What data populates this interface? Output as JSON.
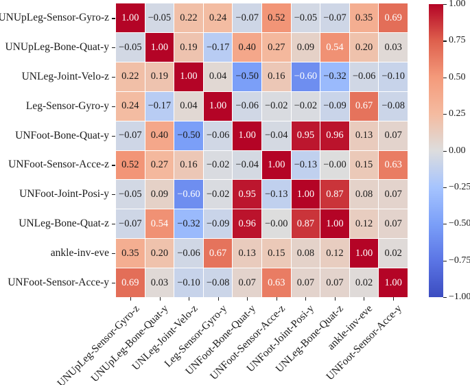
{
  "chart_data": {
    "type": "heatmap",
    "title": "",
    "xlabel": "",
    "ylabel": "",
    "legend_position": "colorbar-right",
    "grid": false,
    "categories": [
      "UNUpLeg-Sensor-Gyro-z",
      "UNUpLeg-Bone-Quat-y",
      "UNLeg-Joint-Velo-z",
      "Leg-Sensor-Gyro-y",
      "UNFoot-Bone-Quat-y",
      "UNFoot-Sensor-Acce-z",
      "UNFoot-Joint-Posi-y",
      "UNLeg-Bone-Quat-z",
      "ankle-inv-eve",
      "UNFoot-Sensor-Acce-y"
    ],
    "values": [
      [
        1.0,
        -0.05,
        0.22,
        0.24,
        -0.07,
        0.52,
        -0.05,
        -0.07,
        0.35,
        0.69
      ],
      [
        -0.05,
        1.0,
        0.19,
        -0.17,
        0.4,
        0.27,
        0.09,
        0.54,
        0.2,
        0.03
      ],
      [
        0.22,
        0.19,
        1.0,
        0.04,
        -0.5,
        0.16,
        -0.6,
        -0.32,
        -0.06,
        -0.1
      ],
      [
        0.24,
        -0.17,
        0.04,
        1.0,
        -0.06,
        -0.02,
        -0.02,
        -0.09,
        0.67,
        -0.08
      ],
      [
        -0.07,
        0.4,
        -0.5,
        -0.06,
        1.0,
        -0.04,
        0.95,
        0.96,
        0.13,
        0.07
      ],
      [
        0.52,
        0.27,
        0.16,
        -0.02,
        -0.04,
        1.0,
        -0.13,
        -0.0,
        0.15,
        0.63
      ],
      [
        -0.05,
        0.09,
        -0.6,
        -0.02,
        0.95,
        -0.13,
        1.0,
        0.87,
        0.08,
        0.07
      ],
      [
        -0.07,
        0.54,
        -0.32,
        -0.09,
        0.96,
        -0.0,
        0.87,
        1.0,
        0.12,
        0.07
      ],
      [
        0.35,
        0.2,
        -0.06,
        0.67,
        0.13,
        0.15,
        0.08,
        0.12,
        1.0,
        0.02
      ],
      [
        0.69,
        0.03,
        -0.1,
        -0.08,
        0.07,
        0.63,
        0.07,
        0.07,
        0.02,
        1.0
      ]
    ],
    "cell_labels": [
      [
        "1.00",
        "−0.05",
        "0.22",
        "0.24",
        "−0.07",
        "0.52",
        "−0.05",
        "−0.07",
        "0.35",
        "0.69"
      ],
      [
        "−0.05",
        "1.00",
        "0.19",
        "−0.17",
        "0.40",
        "0.27",
        "0.09",
        "0.54",
        "0.20",
        "0.03"
      ],
      [
        "0.22",
        "0.19",
        "1.00",
        "0.04",
        "−0.50",
        "0.16",
        "−0.60",
        "−0.32",
        "−0.06",
        "−0.10"
      ],
      [
        "0.24",
        "−0.17",
        "0.04",
        "1.00",
        "−0.06",
        "−0.02",
        "−0.02",
        "−0.09",
        "0.67",
        "−0.08"
      ],
      [
        "−0.07",
        "0.40",
        "−0.50",
        "−0.06",
        "1.00",
        "−0.04",
        "0.95",
        "0.96",
        "0.13",
        "0.07"
      ],
      [
        "0.52",
        "0.27",
        "0.16",
        "−0.02",
        "−0.04",
        "1.00",
        "−0.13",
        "−0.00",
        "0.15",
        "0.63"
      ],
      [
        "−0.05",
        "0.09",
        "−0.60",
        "−0.02",
        "0.95",
        "−0.13",
        "1.00",
        "0.87",
        "0.08",
        "0.07"
      ],
      [
        "−0.07",
        "0.54",
        "−0.32",
        "−0.09",
        "0.96",
        "−0.00",
        "0.87",
        "1.00",
        "0.12",
        "0.07"
      ],
      [
        "0.35",
        "0.20",
        "−0.06",
        "0.67",
        "0.13",
        "0.15",
        "0.08",
        "0.12",
        "1.00",
        "0.02"
      ],
      [
        "0.69",
        "0.03",
        "−0.10",
        "−0.08",
        "0.07",
        "0.63",
        "0.07",
        "0.07",
        "0.02",
        "1.00"
      ]
    ],
    "vmin": -1.0,
    "vmax": 1.0,
    "colormap": "coolwarm",
    "colormap_stops": [
      {
        "t": 0.0,
        "color": "#3b4cc0"
      },
      {
        "t": 0.125,
        "color": "#5b75e5"
      },
      {
        "t": 0.25,
        "color": "#7b9ff8"
      },
      {
        "t": 0.375,
        "color": "#a6c4fe"
      },
      {
        "t": 0.5,
        "color": "#dddddd"
      },
      {
        "t": 0.625,
        "color": "#f4bba0"
      },
      {
        "t": 0.75,
        "color": "#f49a7b"
      },
      {
        "t": 0.875,
        "color": "#de604d"
      },
      {
        "t": 1.0,
        "color": "#b40426"
      }
    ],
    "colorbar_ticks": [
      {
        "value": 1.0,
        "label": "1.00"
      },
      {
        "value": 0.75,
        "label": "0.75"
      },
      {
        "value": 0.5,
        "label": "0.50"
      },
      {
        "value": 0.25,
        "label": "0.25"
      },
      {
        "value": 0.0,
        "label": "0.00"
      },
      {
        "value": -0.25,
        "label": "−0.25"
      },
      {
        "value": -0.5,
        "label": "−0.50"
      },
      {
        "value": -0.75,
        "label": "−0.75"
      },
      {
        "value": -1.0,
        "label": "−1.00"
      }
    ],
    "annotation_colors": {
      "light_text": "#ffffff",
      "dark_text": "#1a1a1a",
      "white_text_abs_threshold": 0.54
    }
  }
}
